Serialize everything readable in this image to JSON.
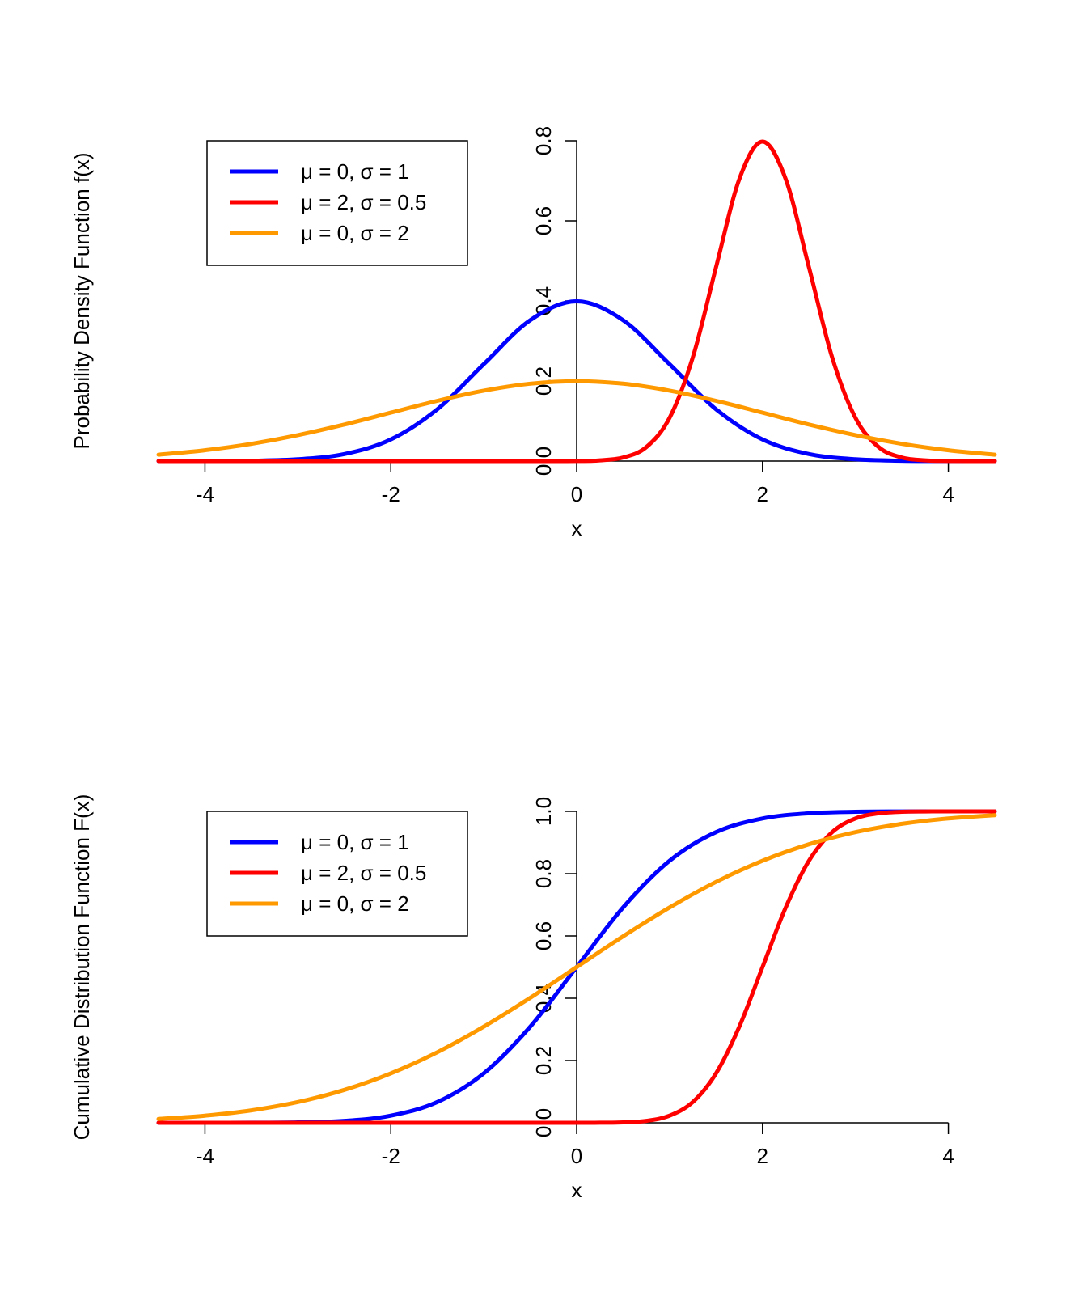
{
  "chart_data": [
    {
      "id": "pdf",
      "type": "line",
      "title": "",
      "xlabel": "x",
      "ylabel": "Probability Density Function f(x)",
      "xlim": [
        -4.5,
        4.5
      ],
      "ylim": [
        0,
        0.8
      ],
      "x_ticks": [
        -4,
        -2,
        0,
        2,
        4
      ],
      "x_tick_labels": [
        "-4",
        "-2",
        "0",
        "2",
        "4"
      ],
      "y_ticks": [
        0,
        0.2,
        0.4,
        0.6,
        0.8
      ],
      "y_tick_labels": [
        "0.0",
        "0.2",
        "0.4",
        "0.6",
        "0.8"
      ],
      "y_axis_at_x": 0,
      "grid": false,
      "legend_position": "top-left",
      "series": [
        {
          "name": "μ = 0, σ = 1",
          "color": "#0000ff",
          "x": [
            -4.5,
            -4,
            -3.5,
            -3,
            -2.5,
            -2,
            -1.5,
            -1,
            -0.5,
            0,
            0.5,
            1,
            1.5,
            2,
            2.5,
            3,
            3.5,
            4,
            4.5
          ],
          "y": [
            1.6e-05,
            0.000134,
            0.000873,
            0.00443,
            0.0175,
            0.054,
            0.1295,
            0.242,
            0.352,
            0.399,
            0.352,
            0.242,
            0.1295,
            0.054,
            0.0175,
            0.00443,
            0.000873,
            0.000134,
            1.6e-05
          ]
        },
        {
          "name": "μ = 2, σ = 0.5",
          "color": "#ff0000",
          "x": [
            -4.5,
            -1,
            0,
            0.25,
            0.5,
            0.75,
            1,
            1.25,
            1.5,
            1.75,
            2,
            2.25,
            2.5,
            2.75,
            3,
            3.25,
            3.5,
            3.75,
            4,
            4.5
          ],
          "y": [
            0,
            0,
            0.0003,
            0.0018,
            0.0089,
            0.035,
            0.108,
            0.259,
            0.484,
            0.704,
            0.798,
            0.704,
            0.484,
            0.259,
            0.108,
            0.035,
            0.0089,
            0.0018,
            0.0003,
            0
          ]
        },
        {
          "name": "μ = 0, σ = 2",
          "color": "#ff9900",
          "x": [
            -4.5,
            -4,
            -3.5,
            -3,
            -2.5,
            -2,
            -1.5,
            -1,
            -0.5,
            0,
            0.5,
            1,
            1.5,
            2,
            2.5,
            3,
            3.5,
            4,
            4.5
          ],
          "y": [
            0.0159,
            0.027,
            0.0431,
            0.0648,
            0.0913,
            0.121,
            0.1506,
            0.176,
            0.1933,
            0.1995,
            0.1933,
            0.176,
            0.1506,
            0.121,
            0.0913,
            0.0648,
            0.0431,
            0.027,
            0.0159
          ]
        }
      ]
    },
    {
      "id": "cdf",
      "type": "line",
      "title": "",
      "xlabel": "x",
      "ylabel": "Cumulative Distribution Function F(x)",
      "xlim": [
        -4.5,
        4.5
      ],
      "ylim": [
        0,
        1
      ],
      "x_ticks": [
        -4,
        -2,
        0,
        2,
        4
      ],
      "x_tick_labels": [
        "-4",
        "-2",
        "0",
        "2",
        "4"
      ],
      "y_ticks": [
        0,
        0.2,
        0.4,
        0.6,
        0.8,
        1.0
      ],
      "y_tick_labels": [
        "0.0",
        "0.2",
        "0.4",
        "0.6",
        "0.8",
        "1.0"
      ],
      "y_axis_at_x": 0,
      "grid": false,
      "legend_position": "top-left",
      "series": [
        {
          "name": "μ = 0, σ = 1",
          "color": "#0000ff",
          "x": [
            -4.5,
            -4,
            -3.5,
            -3,
            -2.5,
            -2,
            -1.5,
            -1,
            -0.5,
            0,
            0.5,
            1,
            1.5,
            2,
            2.5,
            3,
            3.5,
            4,
            4.5
          ],
          "y": [
            3e-06,
            3.2e-05,
            0.00023,
            0.00135,
            0.0062,
            0.0228,
            0.0668,
            0.1587,
            0.3085,
            0.5,
            0.6915,
            0.8413,
            0.9332,
            0.9772,
            0.9938,
            0.99865,
            0.99977,
            0.99997,
            1
          ]
        },
        {
          "name": "μ = 2, σ = 0.5",
          "color": "#ff0000",
          "x": [
            -4.5,
            -1,
            0,
            0.25,
            0.5,
            0.75,
            1,
            1.25,
            1.5,
            1.75,
            2,
            2.25,
            2.5,
            2.75,
            3,
            3.25,
            3.5,
            3.75,
            4,
            4.5
          ],
          "y": [
            0,
            0,
            3e-05,
            0.00023,
            0.00135,
            0.0062,
            0.0228,
            0.0668,
            0.1587,
            0.3085,
            0.5,
            0.6915,
            0.8413,
            0.9332,
            0.9772,
            0.9938,
            0.99865,
            0.99977,
            0.99997,
            1
          ]
        },
        {
          "name": "μ = 0, σ = 2",
          "color": "#ff9900",
          "x": [
            -4.5,
            -4,
            -3.5,
            -3,
            -2.5,
            -2,
            -1.5,
            -1,
            -0.5,
            0,
            0.5,
            1,
            1.5,
            2,
            2.5,
            3,
            3.5,
            4,
            4.5
          ],
          "y": [
            0.0122,
            0.0228,
            0.0401,
            0.0668,
            0.1056,
            0.1587,
            0.2266,
            0.3085,
            0.4013,
            0.5,
            0.5987,
            0.6915,
            0.7734,
            0.8413,
            0.8944,
            0.9332,
            0.9599,
            0.9772,
            0.9878
          ]
        }
      ]
    }
  ]
}
